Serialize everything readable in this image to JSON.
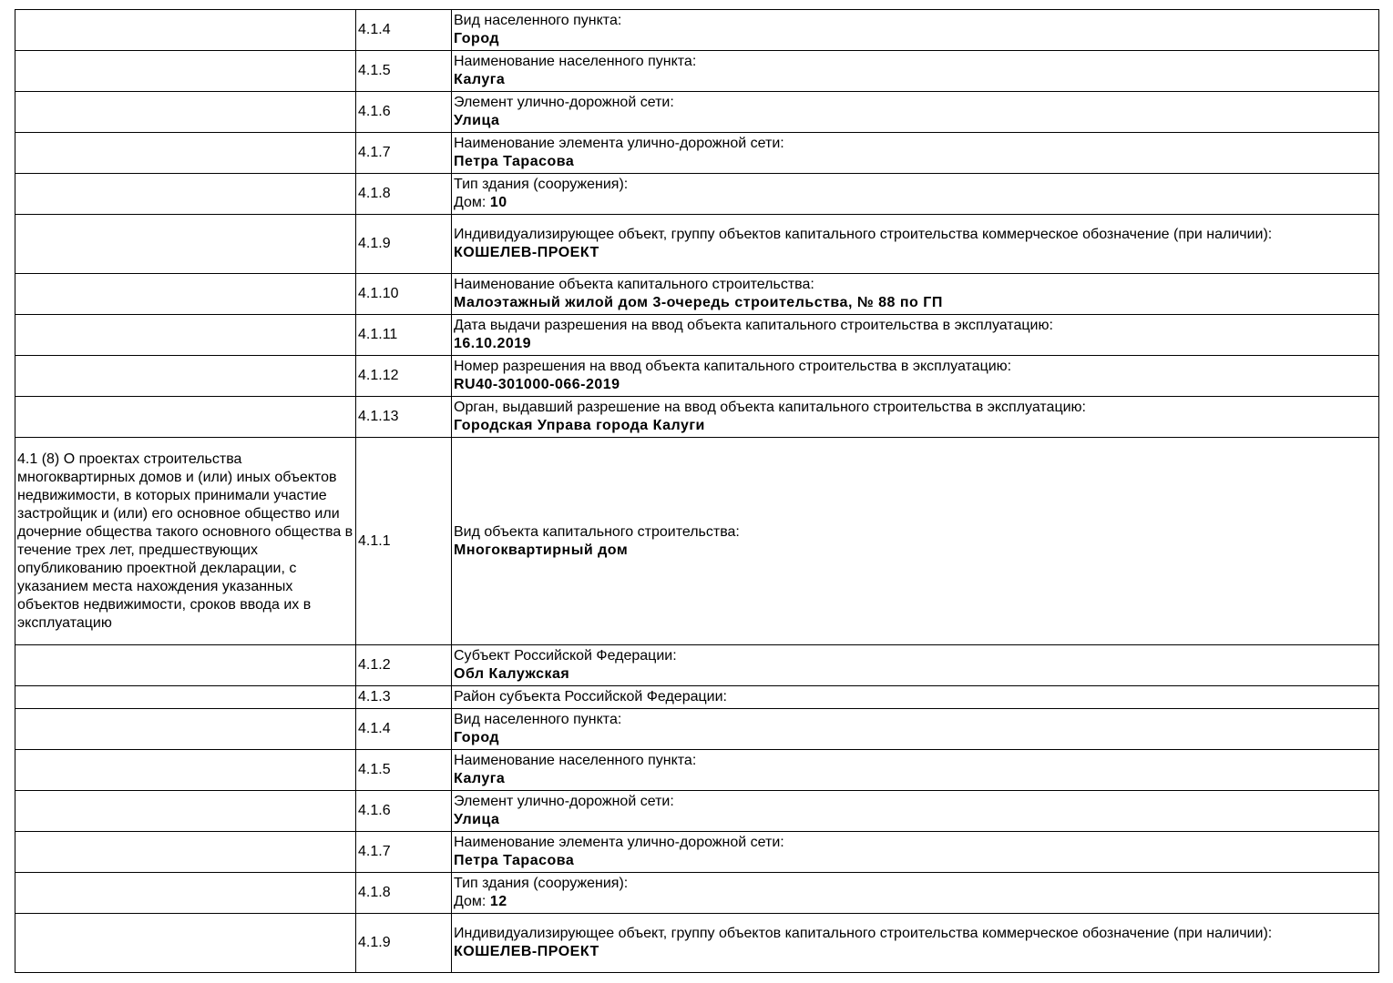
{
  "rows": [
    {
      "section": "",
      "code": "4.1.4",
      "label": "Вид населенного пункта:",
      "value": "Город",
      "h": 45
    },
    {
      "section": "",
      "code": "4.1.5",
      "label": "Наименование населенного пункта:",
      "value": "Калуга",
      "h": 45
    },
    {
      "section": "",
      "code": "4.1.6",
      "label": "Элемент улично-дорожной сети:",
      "value": "Улица",
      "h": 45
    },
    {
      "section": "",
      "code": "4.1.7",
      "label": "Наименование элемента улично-дорожной сети:",
      "value": "Петра Тарасова",
      "h": 45
    },
    {
      "section": "",
      "code": "4.1.8",
      "label": "Тип здания (сооружения):",
      "value_prefix": "Дом: ",
      "value": "10",
      "h": 45
    },
    {
      "section": "",
      "code": "4.1.9",
      "label": "Индивидуализирующее объект, группу объектов капитального строительства коммерческое обозначение (при наличии):",
      "value": "КОШЕЛЕВ-ПРОЕКТ",
      "h": 65
    },
    {
      "section": "",
      "code": "4.1.10",
      "label": "Наименование объекта капитального строительства:",
      "value": "Малоэтажный жилой дом 3-очередь строительства, № 88 по ГП",
      "h": 45
    },
    {
      "section": "",
      "code": "4.1.11",
      "label": "Дата выдачи разрешения на ввод объекта капитального строительства в эксплуатацию:",
      "value": "16.10.2019",
      "h": 45
    },
    {
      "section": "",
      "code": "4.1.12",
      "label": "Номер разрешения на ввод объекта капитального строительства в эксплуатацию:",
      "value": "RU40-301000-066-2019",
      "h": 45
    },
    {
      "section": "",
      "code": "4.1.13",
      "label": "Орган, выдавший разрешение на ввод объекта капитального строительства в эксплуатацию:",
      "value": "Городская Управа города Калуги",
      "h": 45
    },
    {
      "section": "4.1 (8) О проектах строительства многоквартирных домов и (или) иных объектов недвижимости, в которых принимали участие застройщик и (или) его основное общество или дочерние общества такого основного общества в течение трех лет, предшествующих опубликованию проектной декларации, с указанием места нахождения указанных объектов недвижимости, сроков ввода их в эксплуатацию",
      "code": "4.1.1",
      "label": "Вид объекта капитального строительства:",
      "value": "Многоквартирный дом",
      "h": 228
    },
    {
      "section": "",
      "code": "4.1.2",
      "label": "Субъект Российской Федерации:",
      "value": "Обл Калужская",
      "h": 45
    },
    {
      "section": "",
      "code": "4.1.3",
      "label": "Район субъекта Российской Федерации:",
      "value": "",
      "h": 25
    },
    {
      "section": "",
      "code": "4.1.4",
      "label": "Вид населенного пункта:",
      "value": "Город",
      "h": 45
    },
    {
      "section": "",
      "code": "4.1.5",
      "label": "Наименование населенного пункта:",
      "value": "Калуга",
      "h": 45
    },
    {
      "section": "",
      "code": "4.1.6",
      "label": "Элемент улично-дорожной сети:",
      "value": "Улица",
      "h": 45
    },
    {
      "section": "",
      "code": "4.1.7",
      "label": "Наименование элемента улично-дорожной сети:",
      "value": "Петра Тарасова",
      "h": 45
    },
    {
      "section": "",
      "code": "4.1.8",
      "label": "Тип здания (сооружения):",
      "value_prefix": "Дом: ",
      "value": "12",
      "h": 45
    },
    {
      "section": "",
      "code": "4.1.9",
      "label": "Индивидуализирующее объект, группу объектов капитального строительства коммерческое обозначение (при наличии):",
      "value": "КОШЕЛЕВ-ПРОЕКТ",
      "h": 65
    }
  ]
}
